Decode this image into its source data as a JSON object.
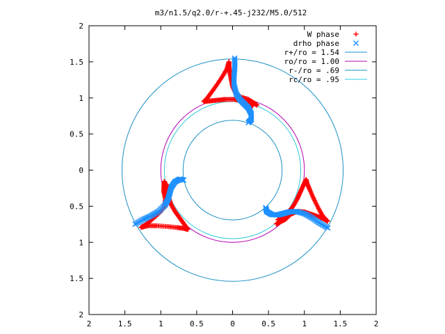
{
  "chart_data": {
    "type": "scatter",
    "title": "m3/n1.5/q2.0/r-+.45-j232/M5.0/512",
    "xlabel": "",
    "ylabel": "",
    "xlim": [
      -2,
      2
    ],
    "ylim": [
      -2,
      2
    ],
    "x_ticks": [
      "2",
      "1.5",
      "1",
      "0.5",
      "0",
      "0.5",
      "1",
      "1.5",
      "2"
    ],
    "y_ticks": [
      "2",
      "1.5",
      "1",
      "0.5",
      "0",
      "0.5",
      "1",
      "1.5",
      "2"
    ],
    "grid": false,
    "legend_position": "top-right",
    "symmetry": 3,
    "series": [
      {
        "name": "W phase",
        "marker": "+",
        "color": "#ff0000",
        "points_sector": [
          [
            0.34,
            0.9
          ],
          [
            0.3,
            0.93
          ],
          [
            0.22,
            0.98
          ],
          [
            0.12,
            1.01
          ],
          [
            0.04,
            1.07
          ],
          [
            0.0,
            1.16
          ],
          [
            -0.02,
            1.26
          ],
          [
            -0.04,
            1.36
          ],
          [
            -0.05,
            1.44
          ],
          [
            -0.05,
            1.5
          ],
          [
            -0.08,
            1.4
          ],
          [
            -0.14,
            1.3
          ],
          [
            -0.22,
            1.18
          ],
          [
            -0.3,
            1.07
          ],
          [
            -0.36,
            0.99
          ],
          [
            -0.4,
            0.95
          ],
          [
            -0.3,
            0.96
          ],
          [
            -0.2,
            0.97
          ],
          [
            -0.1,
            0.98
          ],
          [
            0.02,
            0.98
          ],
          [
            0.12,
            0.96
          ],
          [
            0.22,
            0.93
          ],
          [
            0.28,
            0.89
          ]
        ]
      },
      {
        "name": "drho phase",
        "marker": "x",
        "color": "#1e90ff",
        "points_sector": [
          [
            0.03,
            1.55
          ],
          [
            0.03,
            1.42
          ],
          [
            0.02,
            1.3
          ],
          [
            0.02,
            1.18
          ],
          [
            0.05,
            1.06
          ],
          [
            0.1,
            0.98
          ],
          [
            0.16,
            0.92
          ],
          [
            0.22,
            0.86
          ],
          [
            0.26,
            0.78
          ],
          [
            0.26,
            0.7
          ],
          [
            0.22,
            0.66
          ]
        ]
      }
    ],
    "circles": [
      {
        "name": "r+/ro = 1.54",
        "r": 1.54,
        "color": "#1a8fc4"
      },
      {
        "name": "ro/ro = 1.00",
        "r": 1.0,
        "color": "#b000b0"
      },
      {
        "name": "r-/ro = .69",
        "r": 0.69,
        "color": "#1a8fc4"
      },
      {
        "name": "rc/ro = .95",
        "r": 0.95,
        "color": "#2ec8d8"
      }
    ]
  }
}
